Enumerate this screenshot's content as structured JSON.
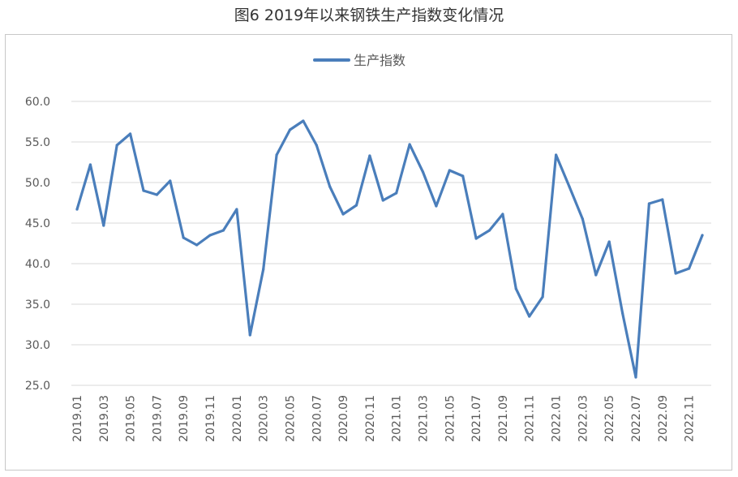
{
  "figure": {
    "title": "图6  2019年以来钢铁生产指数变化情况"
  },
  "chart_data": {
    "type": "line",
    "title": "图6  2019年以来钢铁生产指数变化情况",
    "x": [
      "2019.01",
      "2019.02",
      "2019.03",
      "2019.04",
      "2019.05",
      "2019.06",
      "2019.07",
      "2019.08",
      "2019.09",
      "2019.10",
      "2019.11",
      "2019.12",
      "2020.01",
      "2020.02",
      "2020.03",
      "2020.04",
      "2020.05",
      "2020.06",
      "2020.07",
      "2020.08",
      "2020.09",
      "2020.10",
      "2020.11",
      "2020.12",
      "2021.01",
      "2021.02",
      "2021.03",
      "2021.04",
      "2021.05",
      "2021.06",
      "2021.07",
      "2021.08",
      "2021.09",
      "2021.10",
      "2021.11",
      "2021.12",
      "2022.01",
      "2022.02",
      "2022.03",
      "2022.04",
      "2022.05",
      "2022.06",
      "2022.07",
      "2022.08",
      "2022.09",
      "2022.10",
      "2022.11",
      "2022.12"
    ],
    "x_tick_labels": [
      "2019.01",
      "2019.03",
      "2019.05",
      "2019.07",
      "2019.09",
      "2019.11",
      "2020.01",
      "2020.03",
      "2020.05",
      "2020.07",
      "2020.09",
      "2020.11",
      "2021.01",
      "2021.03",
      "2021.05",
      "2021.07",
      "2021.09",
      "2021.11",
      "2022.01",
      "2022.03",
      "2022.05",
      "2022.07",
      "2022.09",
      "2022.11"
    ],
    "series": [
      {
        "name": "生产指数",
        "color": "#4a7ebb",
        "values": [
          46.7,
          52.2,
          44.7,
          54.6,
          56.0,
          49.0,
          48.5,
          50.2,
          43.2,
          42.3,
          43.5,
          44.1,
          46.7,
          31.2,
          39.3,
          53.4,
          56.5,
          57.6,
          54.6,
          49.5,
          46.1,
          47.2,
          53.3,
          47.8,
          48.7,
          54.7,
          51.3,
          47.1,
          51.5,
          50.8,
          43.1,
          44.1,
          46.1,
          36.9,
          33.5,
          35.9,
          53.4,
          49.5,
          45.5,
          38.6,
          42.7,
          33.9,
          26.0,
          47.4,
          47.9,
          38.8,
          39.4,
          43.5
        ]
      }
    ],
    "y_ticks": [
      "25.0",
      "30.0",
      "35.0",
      "40.0",
      "45.0",
      "50.0",
      "55.0",
      "60.0"
    ],
    "ylim": [
      25,
      60
    ],
    "grid": true,
    "legend_position": "top-center"
  }
}
